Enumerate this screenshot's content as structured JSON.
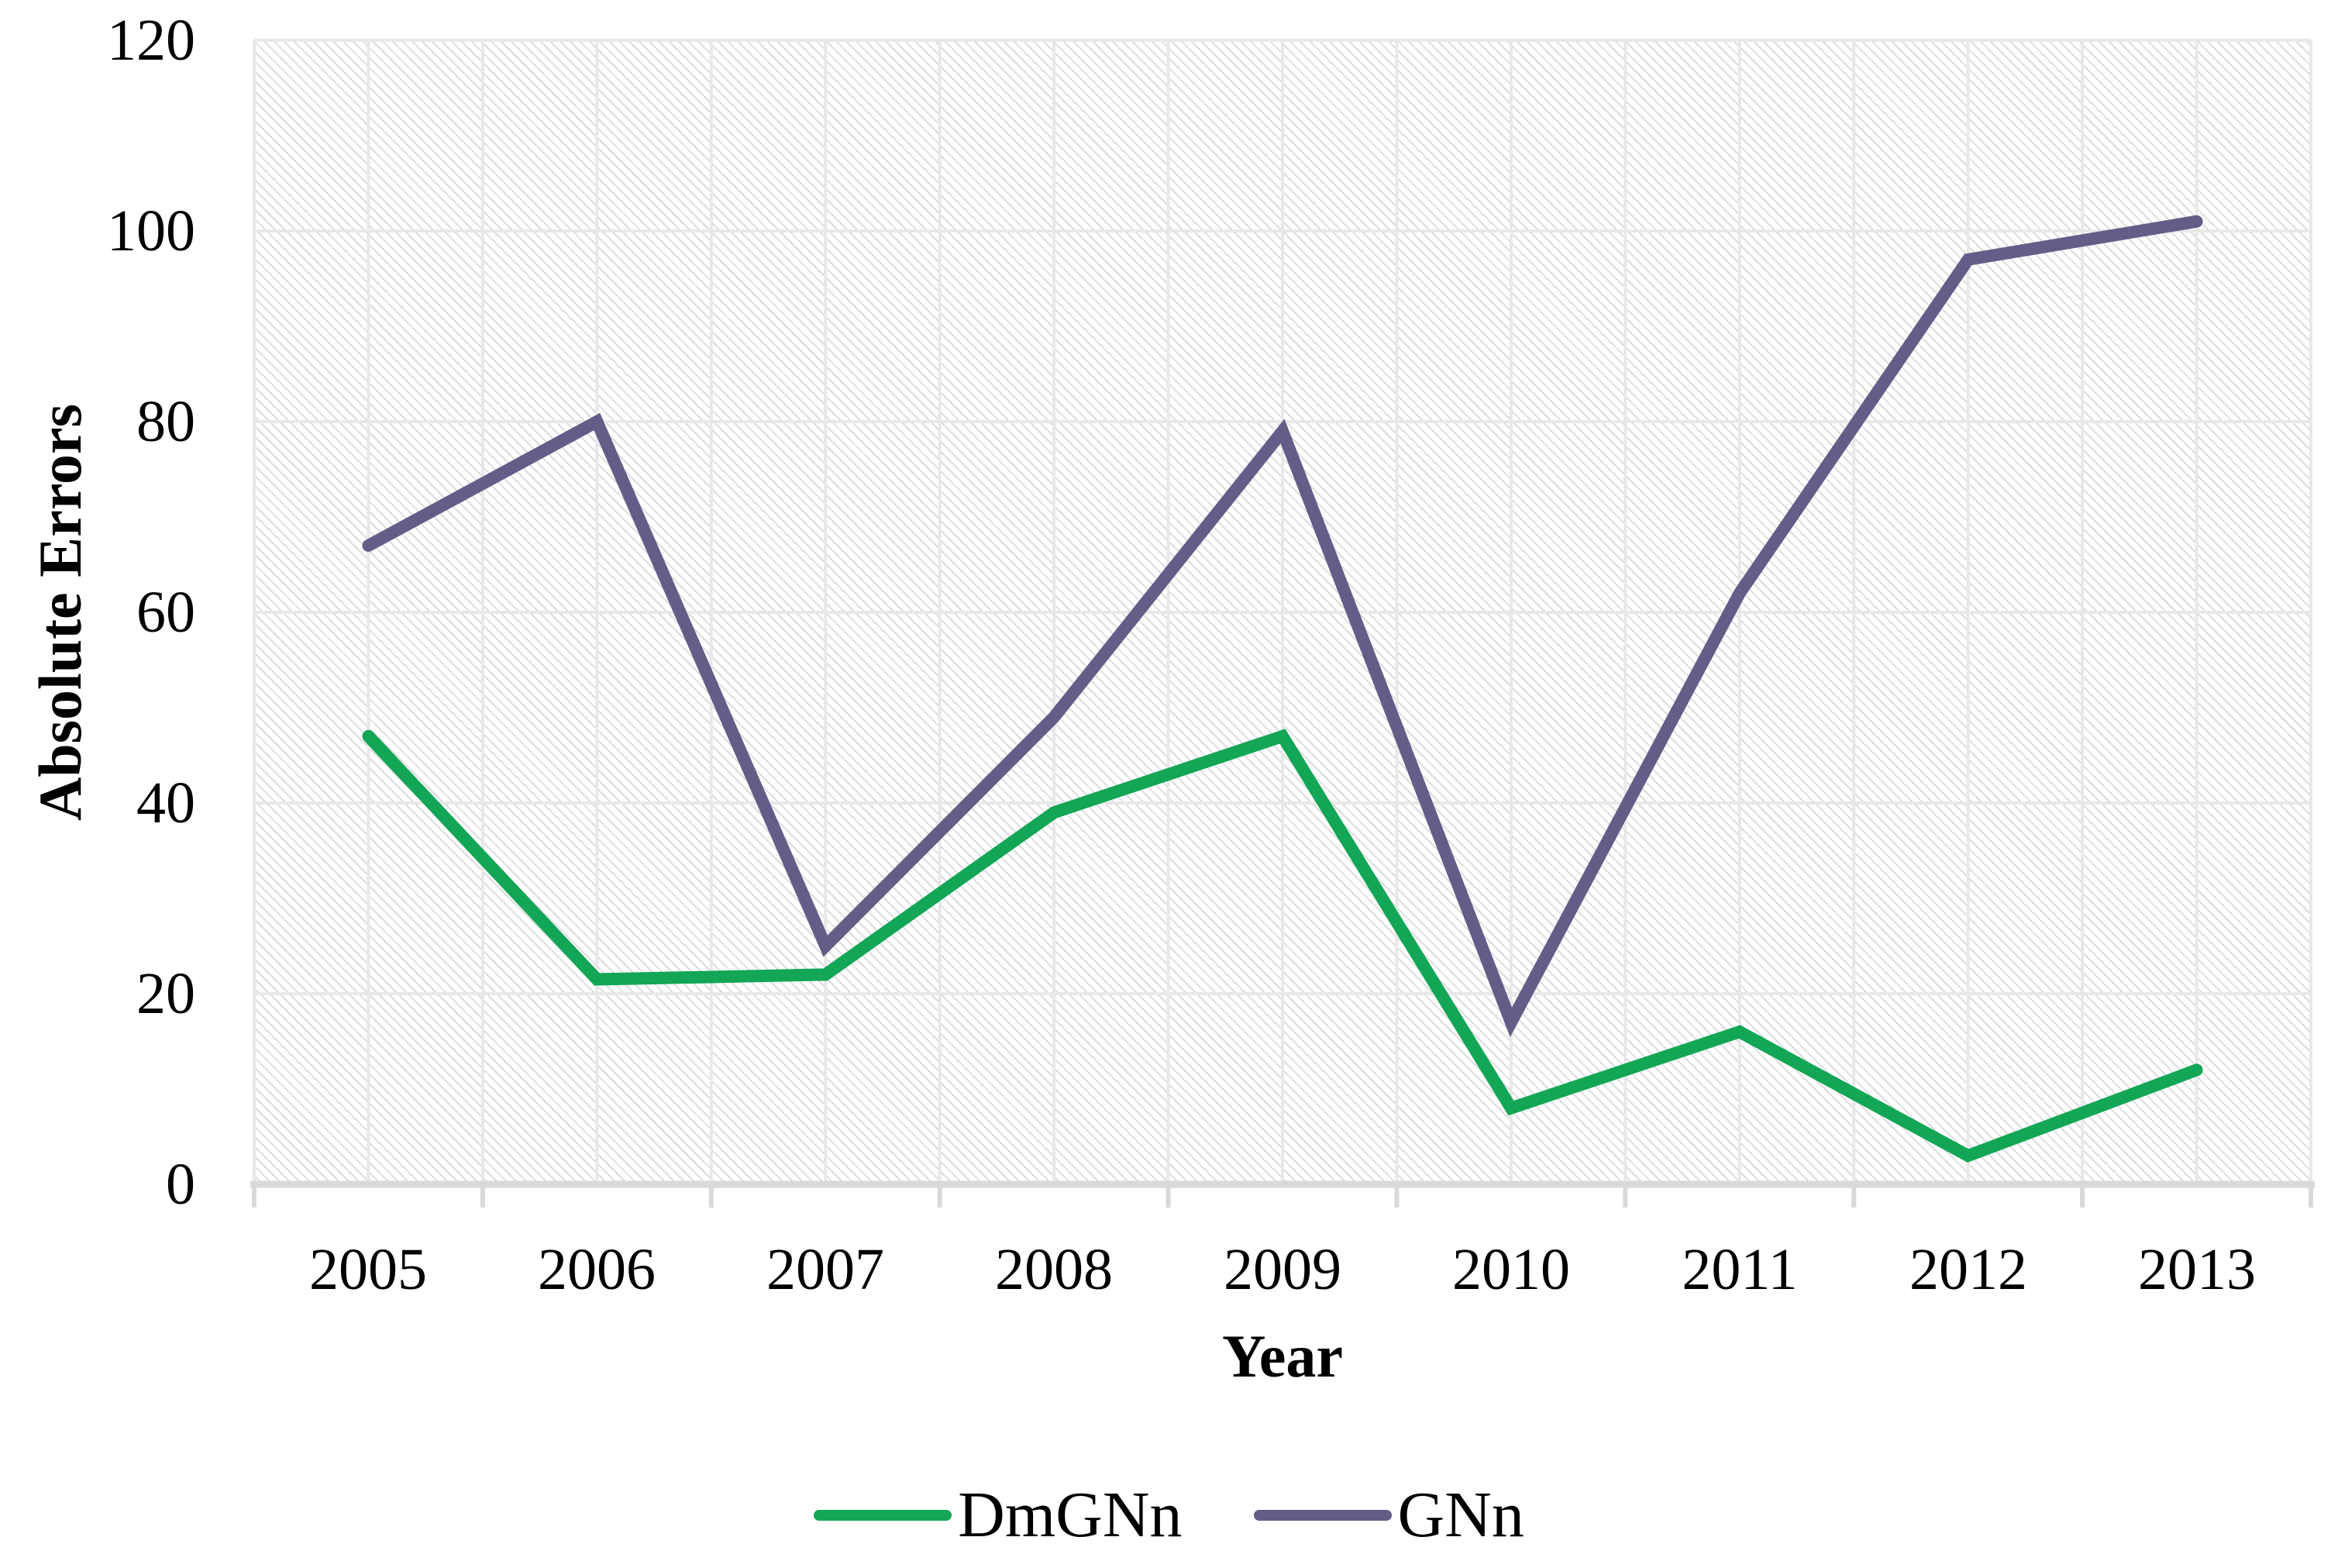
{
  "chart_data": {
    "type": "line",
    "categories": [
      "2005",
      "2006",
      "2007",
      "2008",
      "2009",
      "2010",
      "2011",
      "2012",
      "2013"
    ],
    "series": [
      {
        "name": "DmGNn",
        "color": "#12A656",
        "values": [
          47,
          21.5,
          22,
          39,
          47,
          8,
          16,
          3,
          12
        ]
      },
      {
        "name": "GNn",
        "color": "#665C88",
        "values": [
          67,
          80,
          25,
          49,
          79,
          17,
          62,
          97,
          101
        ]
      }
    ],
    "xlabel": "Year",
    "ylabel": "Absolute Errors",
    "ylim": [
      0,
      120
    ],
    "y_tick_interval": 20,
    "y_ticks": [
      "0",
      "20",
      "40",
      "60",
      "80",
      "100",
      "120"
    ],
    "grid": "both",
    "plot_area_fill": "light-downward-diagonal-hatch",
    "legend_position": "bottom",
    "colors": {
      "gridline": "#E8E8E8",
      "axis_line": "#D9D9D9",
      "hatch_stripe": "#DCDCDC",
      "text": "#000000"
    }
  }
}
